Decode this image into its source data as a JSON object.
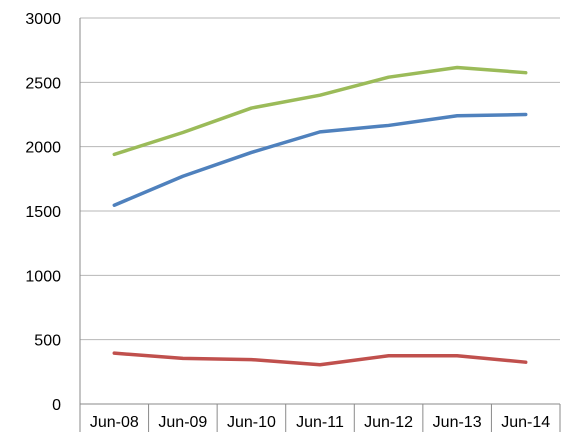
{
  "chart_data": {
    "type": "line",
    "title": "",
    "xlabel": "",
    "ylabel": "",
    "categories": [
      "Jun-08",
      "Jun-09",
      "Jun-10",
      "Jun-11",
      "Jun-12",
      "Jun-13",
      "Jun-14"
    ],
    "ylim": [
      0,
      3000
    ],
    "y_ticks": [
      "0",
      "500",
      "1000",
      "1500",
      "2000",
      "2500",
      "3000"
    ],
    "grid": true,
    "legend": "none",
    "series": [
      {
        "color": "#9bbb59",
        "values": [
          1940,
          2110,
          2300,
          2400,
          2540,
          2615,
          2575
        ]
      },
      {
        "color": "#4f81bd",
        "values": [
          1545,
          1770,
          1955,
          2115,
          2165,
          2240,
          2250
        ]
      },
      {
        "color": "#c0504d",
        "values": [
          395,
          355,
          345,
          305,
          375,
          375,
          325
        ]
      }
    ]
  }
}
